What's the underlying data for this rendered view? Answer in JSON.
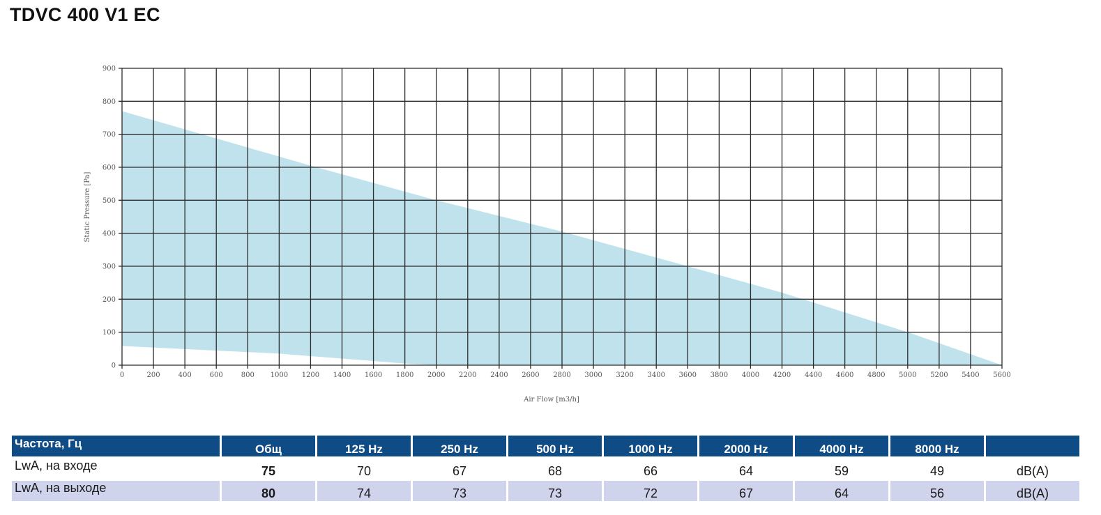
{
  "title": "TDVC 400 V1 EC",
  "chart_data": {
    "type": "area",
    "xlabel": "Air Flow [m3/h]",
    "ylabel": "Static Pressure [Pa]",
    "xlim": [
      0,
      5600
    ],
    "ylim": [
      0,
      900
    ],
    "x_ticks": [
      "0",
      "200",
      "400",
      "600",
      "800",
      "1000",
      "1200",
      "1400",
      "1600",
      "1800",
      "2000",
      "2200",
      "2400",
      "2600",
      "2800",
      "3000",
      "3200",
      "3400",
      "3600",
      "3800",
      "4000",
      "4200",
      "4400",
      "4600",
      "4800",
      "5000",
      "5200",
      "5400",
      "5600"
    ],
    "y_ticks": [
      "0",
      "100",
      "200",
      "300",
      "400",
      "500",
      "600",
      "700",
      "800",
      "900"
    ],
    "grid": true,
    "fill_color": "#bfe2ec",
    "series": [
      {
        "x": [
          0,
          1200,
          2000,
          2800,
          3600,
          4200,
          5000,
          5600
        ],
        "y": [
          770,
          605,
          500,
          405,
          300,
          220,
          100,
          0
        ]
      },
      {
        "x": [
          0,
          1000,
          1800,
          2000,
          5600
        ],
        "y": [
          58,
          35,
          5,
          0,
          0
        ]
      }
    ]
  },
  "table": {
    "headers": [
      "Частота, Гц",
      "Общ",
      "125 Hz",
      "250 Hz",
      "500 Hz",
      "1000 Hz",
      "2000 Hz",
      "4000 Hz",
      "8000 Hz",
      ""
    ],
    "rows": [
      {
        "label": "LwA, на входе",
        "total": "75",
        "values": [
          "70",
          "67",
          "68",
          "66",
          "64",
          "59",
          "49"
        ],
        "unit": "dB(A)"
      },
      {
        "label": "LwA, на выходе",
        "total": "80",
        "values": [
          "74",
          "73",
          "73",
          "72",
          "67",
          "64",
          "56"
        ],
        "unit": "dB(A)"
      }
    ]
  }
}
